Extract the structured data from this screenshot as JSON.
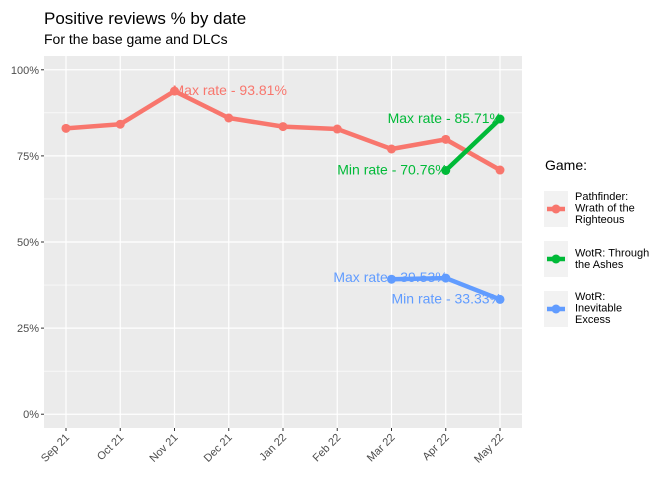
{
  "chart_data": {
    "type": "line",
    "title": "Positive reviews % by date",
    "subtitle": "For the base game and DLCs",
    "xlabel": "",
    "ylabel": "",
    "categories": [
      "Sep 21",
      "Oct 21",
      "Nov 21",
      "Dec 21",
      "Jan 22",
      "Feb 22",
      "Mar 22",
      "Apr 22",
      "May 22"
    ],
    "ylim": [
      -4,
      104
    ],
    "yticks": [
      0,
      25,
      50,
      75,
      100
    ],
    "ytick_labels": [
      "0%",
      "25%",
      "50%",
      "75%",
      "100%"
    ],
    "grid": true,
    "legend": {
      "title": "Game:",
      "position": "right",
      "entries": [
        [
          "Pathfinder:",
          "Wrath of the",
          "Righteous"
        ],
        [
          "WotR: Through",
          "the Ashes"
        ],
        [
          "WotR:",
          "Inevitable",
          "Excess"
        ]
      ]
    },
    "series": [
      {
        "name": "Pathfinder: Wrath of the Righteous",
        "color": "#F8766D",
        "x": [
          "Sep 21",
          "Oct 21",
          "Nov 21",
          "Dec 21",
          "Jan 22",
          "Feb 22",
          "Mar 22",
          "Apr 22",
          "May 22"
        ],
        "values": [
          83.0,
          84.2,
          93.81,
          86.0,
          83.5,
          82.8,
          77.0,
          79.8,
          70.9
        ]
      },
      {
        "name": "WotR: Through the Ashes",
        "color": "#00BA38",
        "x": [
          "Apr 22",
          "May 22"
        ],
        "values": [
          70.76,
          85.71
        ]
      },
      {
        "name": "WotR: Inevitable Excess",
        "color": "#619CFF",
        "x": [
          "Mar 22",
          "Apr 22",
          "May 22"
        ],
        "values": [
          39.2,
          39.53,
          33.33
        ]
      }
    ],
    "annotations": [
      {
        "text": "Max rate - 93.81%",
        "series": 0,
        "x": "Nov 21",
        "y": 93.81,
        "align": "start"
      },
      {
        "text": "Max rate - 85.71%",
        "series": 1,
        "x": "May 22",
        "y": 85.71,
        "align": "end"
      },
      {
        "text": "Min rate - 70.76%",
        "series": 1,
        "x": "Apr 22",
        "y": 70.76,
        "align": "end"
      },
      {
        "text": "Max rate - 39.53%",
        "series": 2,
        "x": "Apr 22",
        "y": 39.53,
        "align": "end"
      },
      {
        "text": "Min rate - 33.33%",
        "series": 2,
        "x": "May 22",
        "y": 33.33,
        "align": "end"
      }
    ]
  }
}
